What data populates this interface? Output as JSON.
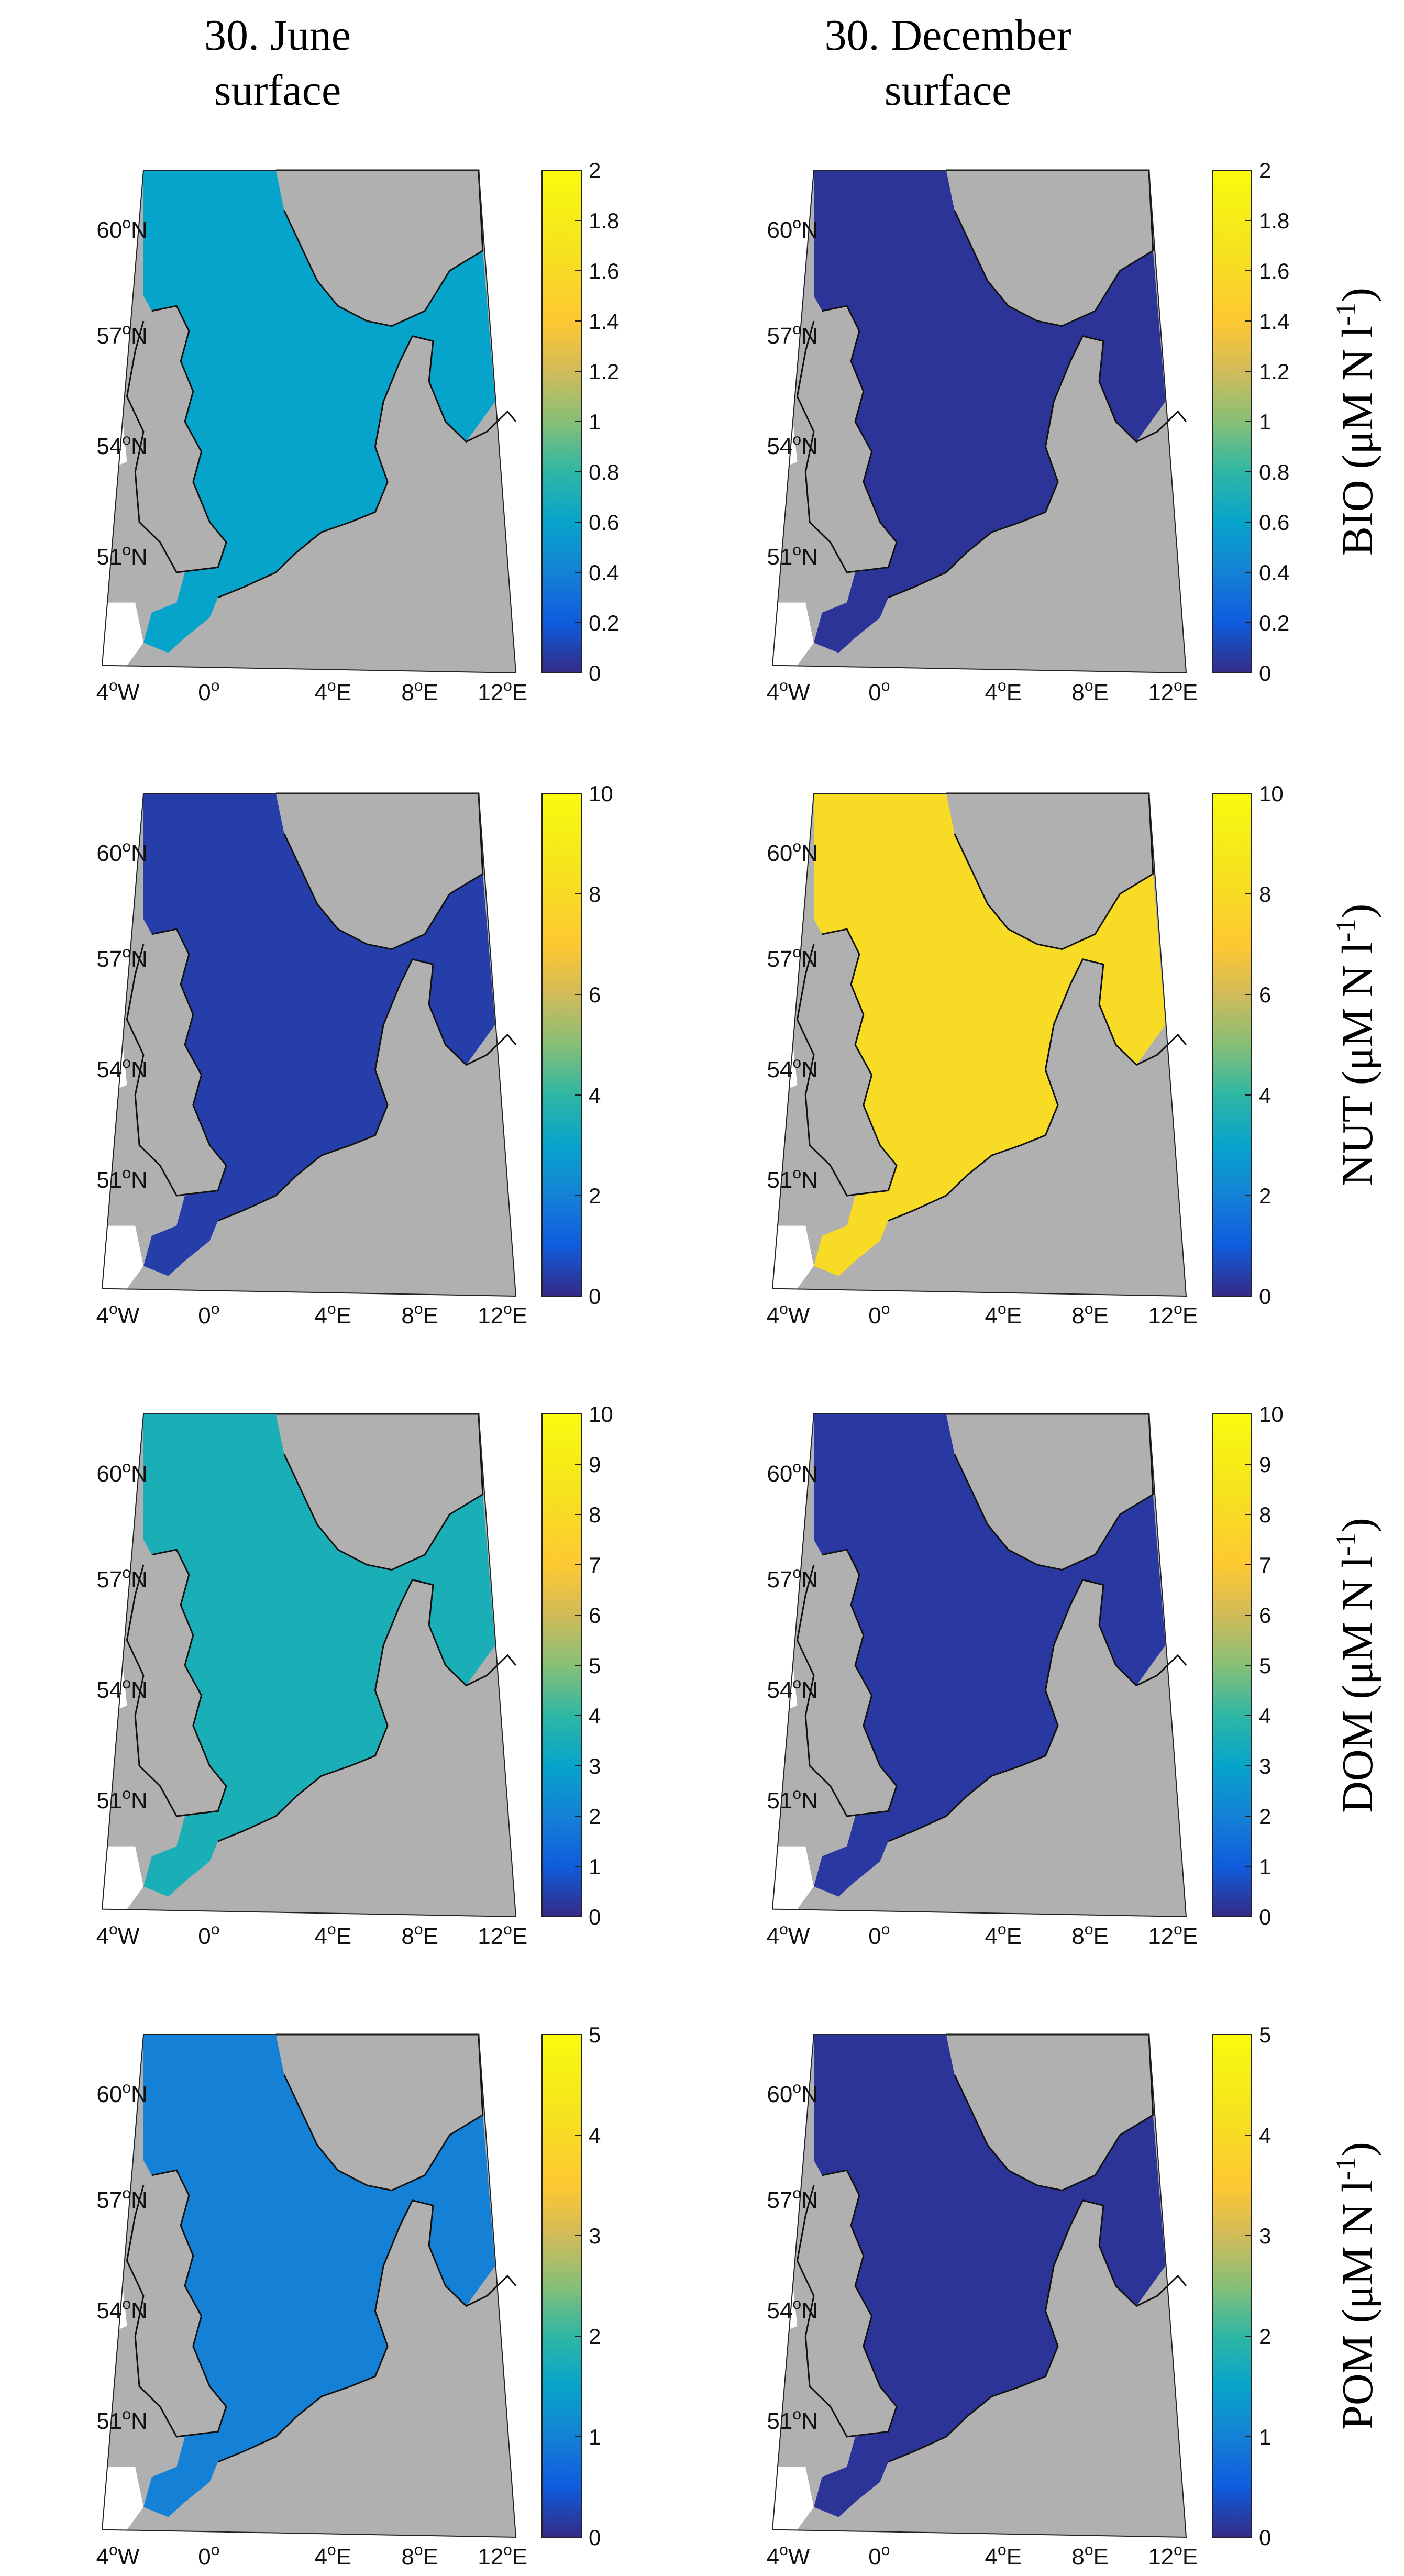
{
  "columns": [
    {
      "title_line1": "30. June",
      "title_line2": "surface"
    },
    {
      "title_line1": "30. December",
      "title_line2": "surface"
    }
  ],
  "rows": [
    {
      "label": "BIO",
      "unit": "(μM N l",
      "exp": "-1",
      "close": ")",
      "colorbar_ticks": [
        "0",
        "0.2",
        "0.4",
        "0.6",
        "0.8",
        "1",
        "1.2",
        "1.4",
        "1.6",
        "1.8",
        "2"
      ],
      "cmax": 2
    },
    {
      "label": "NUT",
      "unit": "(μM N l",
      "exp": "-1",
      "close": ")",
      "colorbar_ticks": [
        "0",
        "2",
        "4",
        "6",
        "8",
        "10"
      ],
      "cmax": 10
    },
    {
      "label": "DOM",
      "unit": "(μM N l",
      "exp": "-1",
      "close": ")",
      "colorbar_ticks": [
        "0",
        "1",
        "2",
        "3",
        "4",
        "5",
        "6",
        "7",
        "8",
        "9",
        "10"
      ],
      "cmax": 10
    },
    {
      "label": "POM",
      "unit": "(μM N l",
      "exp": "-1",
      "close": ")",
      "colorbar_ticks": [
        "0",
        "1",
        "2",
        "3",
        "4",
        "5"
      ],
      "cmax": 5
    }
  ],
  "map_axes": {
    "lat_labels": [
      {
        "deg": "60",
        "hem": "N"
      },
      {
        "deg": "57",
        "hem": "N"
      },
      {
        "deg": "54",
        "hem": "N"
      },
      {
        "deg": "51",
        "hem": "N"
      }
    ],
    "lon_labels": [
      {
        "deg": "4",
        "hem": "W"
      },
      {
        "deg": "0",
        "hem": ""
      },
      {
        "deg": "4",
        "hem": "E"
      },
      {
        "deg": "8",
        "hem": "E"
      },
      {
        "deg": "12",
        "hem": "E"
      }
    ]
  },
  "colormap": "parula",
  "colors": {
    "land": "#b0b0b0",
    "outside": "#ffffff",
    "low": "#352a87",
    "mid": "#1f98d4",
    "high": "#f9fb0e"
  },
  "panels": [
    {
      "row": 0,
      "col": 0,
      "mean_level": 0.3
    },
    {
      "row": 0,
      "col": 1,
      "mean_level": 0.02
    },
    {
      "row": 1,
      "col": 0,
      "mean_level": 0.04
    },
    {
      "row": 1,
      "col": 1,
      "mean_level": 0.8
    },
    {
      "row": 2,
      "col": 0,
      "mean_level": 0.35
    },
    {
      "row": 2,
      "col": 1,
      "mean_level": 0.03
    },
    {
      "row": 3,
      "col": 0,
      "mean_level": 0.2
    },
    {
      "row": 3,
      "col": 1,
      "mean_level": 0.02
    }
  ]
}
